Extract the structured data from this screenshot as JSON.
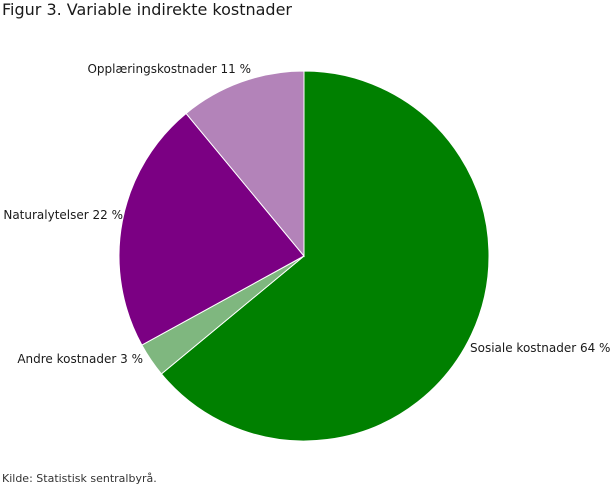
{
  "title": "Figur 3. Variable indirekte kostnader",
  "source": "Kilde: Statistisk sentralbyrå.",
  "chart_data": {
    "type": "pie",
    "title": "Figur 3. Variable indirekte kostnader",
    "slices": [
      {
        "name": "Sosiale kostnader",
        "value": 64,
        "label": "Sosiale kostnader 64 %",
        "color": "#008000"
      },
      {
        "name": "Andre kostnader",
        "value": 3,
        "label": "Andre kostnader 3 %",
        "color": "#7fb77f"
      },
      {
        "name": "Naturalytelser",
        "value": 22,
        "label": "Naturalytelser 22 %",
        "color": "#7b0083"
      },
      {
        "name": "Opplæringskostnader",
        "value": 11,
        "label": "Opplæringskostnader 11 %",
        "color": "#b383b9"
      }
    ],
    "start_angle": "12 o'clock",
    "direction": "clockwise",
    "legend": "none"
  }
}
